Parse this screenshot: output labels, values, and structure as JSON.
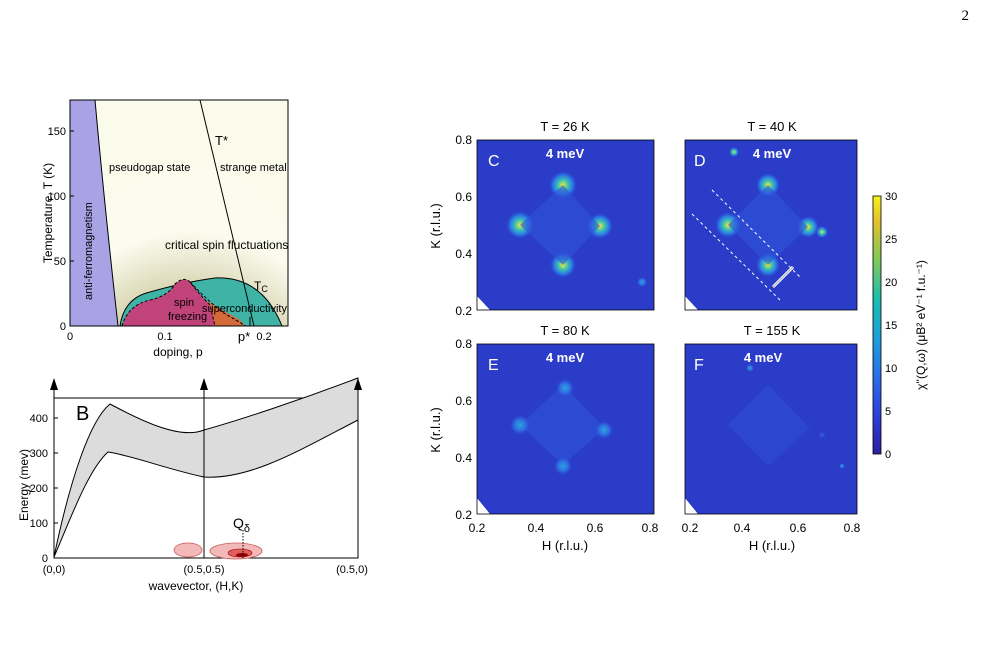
{
  "page_number": "2",
  "phase_diagram": {
    "y_label": "Temperature, T (K)",
    "x_label": "doping, p",
    "y_ticks": [
      "0",
      "50",
      "100",
      "150"
    ],
    "x_ticks": [
      "0",
      "0.1",
      "0.2"
    ],
    "p_star_label": "p*",
    "t_star_label": "T*",
    "regions": {
      "afm": "anti-ferromagnetism",
      "pseudogap": "pseudogap state",
      "strange_metal": "strange metal",
      "critical": "critical spin fluctuations",
      "spin_freezing_1": "spin",
      "spin_freezing_2": "freezing",
      "superconductivity": "superconductivity",
      "tc": "T",
      "tc_sub": "C"
    }
  },
  "dispersion": {
    "panel_letter": "B",
    "y_label": "Energy (mev)",
    "x_label": "wavevector, (H,K)",
    "y_ticks": [
      "0",
      "100",
      "200",
      "300",
      "400"
    ],
    "x_ticks": [
      "(0,0)",
      "(0.5,0.5)",
      "(0.5,0)"
    ],
    "q_label": "Q",
    "q_sub": "δ"
  },
  "maps": {
    "panels": [
      {
        "letter": "C",
        "temp": "T = 26 K",
        "energy": "4 meV"
      },
      {
        "letter": "D",
        "temp": "T = 40 K",
        "energy": "4 meV"
      },
      {
        "letter": "E",
        "temp": "T = 80 K",
        "energy": "4 meV"
      },
      {
        "letter": "F",
        "temp": "T = 155 K",
        "energy": "4 meV"
      }
    ],
    "x_label": "H (r.l.u.)",
    "y_label": "K (r.l.u.)",
    "x_ticks": [
      "0.2",
      "0.4",
      "0.6",
      "0.8"
    ],
    "y_ticks": [
      "0.2",
      "0.4",
      "0.6",
      "0.8"
    ],
    "colorbar_ticks": [
      "0",
      "5",
      "10",
      "15",
      "20",
      "25",
      "30"
    ],
    "colorbar_label": "χ''(Q,ω) (μB² eV⁻¹ f.u.⁻¹)"
  }
}
